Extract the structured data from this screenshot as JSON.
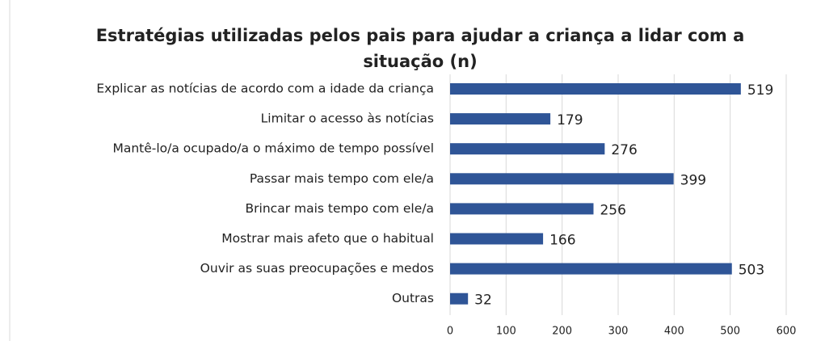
{
  "chart_data": {
    "type": "bar",
    "orientation": "horizontal",
    "title": "Estratégias utilizadas pelos pais para ajudar a criança a lidar com a situação (n)",
    "categories": [
      "Explicar as notícias de acordo com a idade da criança",
      "Limitar o acesso às notícias",
      "Mantê-lo/a ocupado/a o máximo de tempo possível",
      "Passar mais tempo com ele/a",
      "Brincar mais tempo com ele/a",
      "Mostrar mais afeto que o habitual",
      "Ouvir as suas preocupações e medos",
      "Outras"
    ],
    "values": [
      519,
      179,
      276,
      399,
      256,
      166,
      503,
      32
    ],
    "color": "#2f5597",
    "xlim": [
      0,
      600
    ],
    "xticks": [
      0,
      100,
      200,
      300,
      400,
      500,
      600
    ],
    "grid": true
  }
}
